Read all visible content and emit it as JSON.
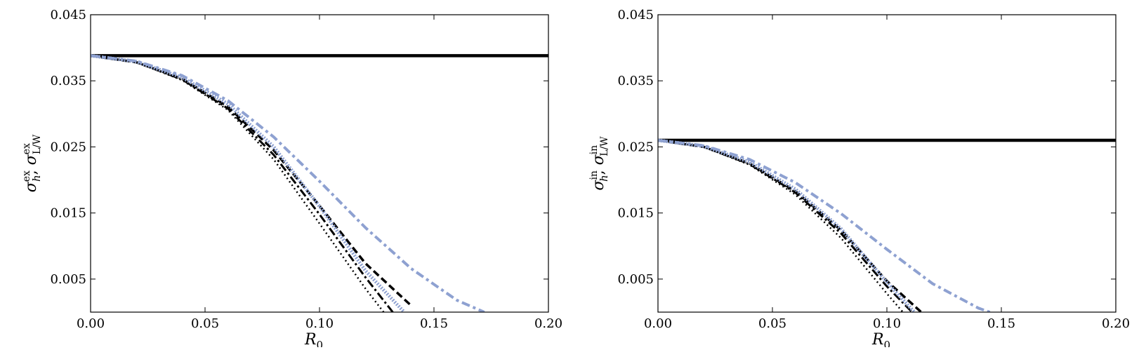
{
  "colors": {
    "black": "#000000",
    "blue": "#8ea1d1",
    "background": "#ffffff"
  },
  "chart_data": [
    {
      "type": "line",
      "title": "",
      "xlabel": "R0",
      "ylabel": "σ_h^ex, σ_L/W^ex",
      "xlim": [
        0.0,
        0.2
      ],
      "ylim": [
        0.0,
        0.045
      ],
      "xticks": [
        "0.00",
        "0.05",
        "0.10",
        "0.15",
        "0.20"
      ],
      "yticks": [
        "0.005",
        "0.015",
        "0.025",
        "0.035",
        "0.045"
      ],
      "grid": false,
      "legend": "none",
      "series": [
        {
          "style": "solid",
          "color": "#000000",
          "x": [
            0.0,
            0.2
          ],
          "y": [
            0.0388,
            0.0388
          ]
        },
        {
          "style": "dotted",
          "color": "#000000",
          "x": [
            0.0,
            0.02,
            0.04,
            0.06,
            0.08,
            0.1,
            0.12,
            0.128
          ],
          "y": [
            0.0388,
            0.0378,
            0.0351,
            0.0306,
            0.0231,
            0.0134,
            0.0036,
            0.0
          ]
        },
        {
          "style": "dashdot",
          "color": "#000000",
          "x": [
            0.0,
            0.02,
            0.04,
            0.06,
            0.08,
            0.1,
            0.12,
            0.132
          ],
          "y": [
            0.0388,
            0.0378,
            0.0352,
            0.0308,
            0.0238,
            0.0148,
            0.0053,
            0.0
          ]
        },
        {
          "style": "dashed",
          "color": "#000000",
          "x": [
            0.0,
            0.02,
            0.04,
            0.06,
            0.08,
            0.1,
            0.12,
            0.14
          ],
          "y": [
            0.0388,
            0.0378,
            0.0353,
            0.0311,
            0.0245,
            0.0161,
            0.0074,
            0.001
          ]
        },
        {
          "style": "dotted-thick",
          "color": "#8ea1d1",
          "x": [
            0.0,
            0.02,
            0.04,
            0.06,
            0.08,
            0.1,
            0.12,
            0.137
          ],
          "y": [
            0.0388,
            0.0379,
            0.0355,
            0.0315,
            0.025,
            0.016,
            0.0063,
            0.0
          ]
        },
        {
          "style": "dashdot-thick",
          "color": "#8ea1d1",
          "x": [
            0.0,
            0.02,
            0.04,
            0.06,
            0.08,
            0.1,
            0.12,
            0.14,
            0.16,
            0.172
          ],
          "y": [
            0.0388,
            0.038,
            0.0358,
            0.032,
            0.0265,
            0.0198,
            0.0128,
            0.0066,
            0.0018,
            0.0
          ]
        }
      ]
    },
    {
      "type": "line",
      "title": "",
      "xlabel": "R0",
      "ylabel": "σ_h^in, σ_L/W^in",
      "xlim": [
        0.0,
        0.2
      ],
      "ylim": [
        0.0,
        0.045
      ],
      "xticks": [
        "0.00",
        "0.05",
        "0.10",
        "0.15",
        "0.20"
      ],
      "yticks": [
        "0.005",
        "0.015",
        "0.025",
        "0.035",
        "0.045"
      ],
      "grid": false,
      "legend": "none",
      "series": [
        {
          "style": "solid",
          "color": "#000000",
          "x": [
            0.0,
            0.2
          ],
          "y": [
            0.026,
            0.026
          ]
        },
        {
          "style": "dotted",
          "color": "#000000",
          "x": [
            0.0,
            0.02,
            0.04,
            0.06,
            0.08,
            0.1,
            0.107
          ],
          "y": [
            0.026,
            0.025,
            0.0223,
            0.0178,
            0.0112,
            0.0028,
            0.0
          ]
        },
        {
          "style": "dashdot",
          "color": "#000000",
          "x": [
            0.0,
            0.02,
            0.04,
            0.06,
            0.08,
            0.1,
            0.111
          ],
          "y": [
            0.026,
            0.025,
            0.0224,
            0.0181,
            0.0119,
            0.0039,
            0.0
          ]
        },
        {
          "style": "dashed",
          "color": "#000000",
          "x": [
            0.0,
            0.02,
            0.04,
            0.06,
            0.08,
            0.1,
            0.115
          ],
          "y": [
            0.026,
            0.025,
            0.0225,
            0.0183,
            0.0124,
            0.0047,
            0.0
          ]
        },
        {
          "style": "dotted-thick",
          "color": "#8ea1d1",
          "x": [
            0.0,
            0.02,
            0.04,
            0.06,
            0.08,
            0.1,
            0.112
          ],
          "y": [
            0.026,
            0.0251,
            0.0227,
            0.0186,
            0.0126,
            0.0045,
            0.0
          ]
        },
        {
          "style": "dashdot-thick",
          "color": "#8ea1d1",
          "x": [
            0.0,
            0.02,
            0.04,
            0.06,
            0.08,
            0.1,
            0.12,
            0.14,
            0.145
          ],
          "y": [
            0.026,
            0.0252,
            0.0231,
            0.0196,
            0.0149,
            0.0095,
            0.0043,
            0.0006,
            0.0
          ]
        }
      ]
    }
  ]
}
